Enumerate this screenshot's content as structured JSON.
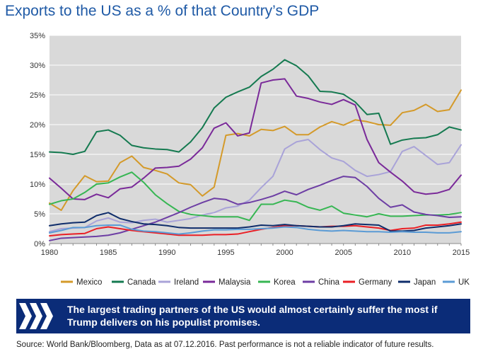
{
  "header": {
    "title": "Exports to the US as a % of that Country’s GDP"
  },
  "chart_data": {
    "type": "line",
    "title": "Exports to the US as a % of that Country’s GDP",
    "xlabel": "",
    "ylabel": "",
    "x": [
      1980,
      1981,
      1982,
      1983,
      1984,
      1985,
      1986,
      1987,
      1988,
      1989,
      1990,
      1991,
      1992,
      1993,
      1994,
      1995,
      1996,
      1997,
      1998,
      1999,
      2000,
      2001,
      2002,
      2003,
      2004,
      2005,
      2006,
      2007,
      2008,
      2009,
      2010,
      2011,
      2012,
      2013,
      2014,
      2015
    ],
    "xlim": [
      1980,
      2015
    ],
    "ylim": [
      0,
      35
    ],
    "xticks": [
      1980,
      1985,
      1990,
      1995,
      2000,
      2005,
      2010,
      2015
    ],
    "xtick_labels": [
      "1980",
      "1985",
      "1990",
      "1995",
      "2000",
      "2005",
      "2010",
      "2015"
    ],
    "yticks": [
      0,
      5,
      10,
      15,
      20,
      25,
      30,
      35
    ],
    "ytick_labels": [
      "0%",
      "5%",
      "10%",
      "15%",
      "20%",
      "25%",
      "30%",
      "35%"
    ],
    "grid": true,
    "legend_position": "bottom",
    "plot_background": "#d9d9d9",
    "series": [
      {
        "name": "Mexico",
        "color": "#d49a2a",
        "values": [
          6.8,
          5.6,
          8.9,
          11.4,
          10.4,
          10.5,
          13.6,
          14.7,
          12.8,
          12.3,
          11.7,
          10.2,
          9.9,
          8.0,
          9.5,
          18.2,
          18.5,
          18.1,
          19.2,
          19.0,
          19.7,
          18.3,
          18.3,
          19.6,
          20.5,
          19.9,
          20.8,
          20.5,
          20.0,
          19.9,
          22.0,
          22.4,
          23.4,
          22.2,
          22.5,
          25.8
        ]
      },
      {
        "name": "Canada",
        "color": "#157a50",
        "values": [
          15.4,
          15.3,
          15.0,
          15.5,
          18.8,
          19.1,
          18.2,
          16.5,
          16.1,
          15.9,
          15.8,
          15.4,
          17.1,
          19.5,
          22.8,
          24.6,
          25.5,
          26.3,
          28.1,
          29.3,
          30.9,
          29.9,
          28.2,
          25.6,
          25.5,
          25.1,
          23.8,
          21.7,
          21.9,
          16.7,
          17.4,
          17.7,
          17.8,
          18.3,
          19.6,
          19.1
        ]
      },
      {
        "name": "Ireland",
        "color": "#a9a3d8",
        "values": [
          2.0,
          2.5,
          2.6,
          2.7,
          3.8,
          4.3,
          3.6,
          3.5,
          3.9,
          4.1,
          3.6,
          3.9,
          4.2,
          4.8,
          5.2,
          6.0,
          6.3,
          7.3,
          9.4,
          11.3,
          15.9,
          17.1,
          17.5,
          15.8,
          14.4,
          13.8,
          12.3,
          11.3,
          11.6,
          12.1,
          15.5,
          16.3,
          14.8,
          13.3,
          13.6,
          16.6
        ]
      },
      {
        "name": "Malaysia",
        "color": "#7a2a99",
        "values": [
          11.0,
          9.3,
          7.5,
          7.4,
          8.3,
          7.7,
          9.2,
          9.5,
          11.0,
          12.7,
          12.8,
          13.0,
          14.2,
          16.1,
          19.4,
          20.3,
          18.1,
          18.6,
          27.0,
          27.5,
          27.7,
          24.8,
          24.4,
          23.8,
          23.4,
          24.2,
          23.3,
          17.5,
          13.6,
          12.0,
          10.5,
          8.7,
          8.3,
          8.5,
          9.1,
          11.5
        ]
      },
      {
        "name": "Korea",
        "color": "#37b653",
        "values": [
          6.6,
          7.2,
          7.5,
          8.6,
          10.0,
          10.2,
          11.2,
          12.0,
          10.3,
          8.2,
          6.7,
          5.4,
          4.9,
          4.7,
          4.5,
          4.5,
          4.5,
          3.9,
          6.6,
          6.6,
          7.3,
          7.0,
          6.1,
          5.6,
          6.3,
          5.1,
          4.8,
          4.5,
          5.0,
          4.6,
          4.6,
          4.7,
          4.8,
          4.8,
          4.9,
          5.2
        ]
      },
      {
        "name": "China",
        "color": "#6d3ea4",
        "values": [
          0.5,
          0.9,
          1.0,
          1.1,
          1.2,
          1.4,
          1.8,
          2.4,
          3.0,
          3.6,
          4.4,
          5.2,
          6.1,
          6.9,
          7.6,
          7.4,
          6.6,
          6.9,
          7.4,
          8.0,
          8.8,
          8.2,
          9.1,
          9.8,
          10.6,
          11.3,
          11.1,
          9.6,
          7.6,
          6.1,
          6.5,
          5.3,
          4.9,
          4.7,
          4.4,
          4.5
        ]
      },
      {
        "name": "Germany",
        "color": "#ea1f25",
        "values": [
          1.3,
          1.5,
          1.6,
          1.7,
          2.5,
          2.8,
          2.5,
          2.2,
          2.0,
          1.8,
          1.6,
          1.4,
          1.4,
          1.4,
          1.5,
          1.5,
          1.6,
          2.0,
          2.4,
          2.7,
          3.0,
          3.0,
          2.9,
          2.8,
          2.9,
          2.9,
          3.0,
          2.8,
          2.6,
          2.2,
          2.5,
          2.6,
          3.1,
          3.1,
          3.3,
          3.6
        ]
      },
      {
        "name": "Japan",
        "color": "#0f2d6b",
        "values": [
          3.0,
          3.3,
          3.5,
          3.6,
          4.7,
          5.2,
          4.2,
          3.7,
          3.3,
          3.2,
          3.0,
          2.7,
          2.6,
          2.6,
          2.6,
          2.6,
          2.6,
          2.8,
          3.1,
          3.0,
          3.2,
          3.0,
          2.9,
          2.8,
          2.8,
          3.0,
          3.3,
          3.2,
          3.1,
          2.1,
          2.1,
          2.2,
          2.6,
          2.8,
          3.0,
          3.3
        ]
      },
      {
        "name": "UK",
        "color": "#5b9bd5",
        "values": [
          1.8,
          2.2,
          2.7,
          2.7,
          3.0,
          3.1,
          3.1,
          2.4,
          2.1,
          2.0,
          1.8,
          1.6,
          1.8,
          2.1,
          2.3,
          2.3,
          2.4,
          2.4,
          2.5,
          2.6,
          2.8,
          2.7,
          2.4,
          2.2,
          2.1,
          2.2,
          2.1,
          2.0,
          2.0,
          1.9,
          2.0,
          1.9,
          1.9,
          1.8,
          1.8,
          2.0
        ]
      }
    ]
  },
  "banner": {
    "text": "The largest trading partners of the US would almost certainly suffer the most if Trump delivers on his populist promises.",
    "color": "#0b2c78"
  },
  "footer": {
    "source": "Source: World Bank/Bloomberg, Data as at 07.12.2016. Past performance is not a reliable indicator of future results."
  }
}
